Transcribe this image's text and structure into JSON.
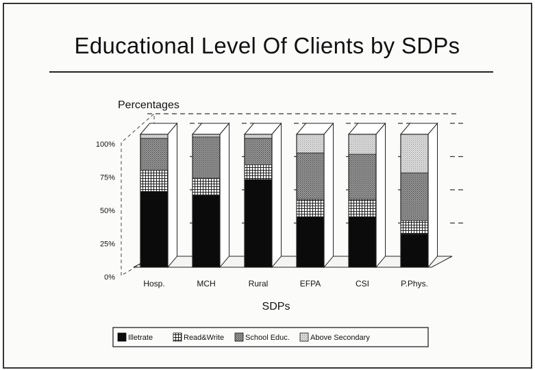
{
  "chart_data": {
    "type": "bar",
    "stacked": true,
    "title": "Educational Level Of Clients by SDPs",
    "ylabel": "Percentages",
    "xlabel": "SDPs",
    "ylim": [
      0,
      100
    ],
    "yticks": [
      "0%",
      "25%",
      "50%",
      "75%",
      "100%"
    ],
    "categories": [
      "Hosp.",
      "MCH",
      "Rural",
      "EFPA",
      "CSI",
      "P.Phys."
    ],
    "series": [
      {
        "name": "Illetrate",
        "values": [
          57,
          54,
          66,
          38,
          38,
          25
        ]
      },
      {
        "name": "Read&Write",
        "values": [
          16,
          13,
          11,
          13,
          13,
          10
        ]
      },
      {
        "name": "School Educ.",
        "values": [
          24,
          31,
          20,
          35,
          34,
          36
        ]
      },
      {
        "name": "Above Secondary",
        "values": [
          3,
          2,
          3,
          14,
          15,
          29
        ]
      }
    ],
    "legend_position": "bottom",
    "grid": "dashed horizontal, right side",
    "style": "3D stacked columns"
  }
}
